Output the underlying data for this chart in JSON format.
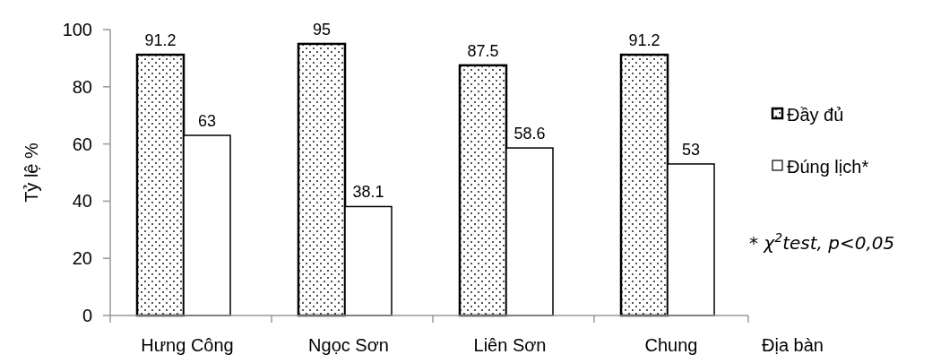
{
  "chart_data": {
    "type": "bar",
    "ylabel": "Tỷ lệ %",
    "xlabel": "Địa bàn",
    "categories": [
      "Hưng Công",
      "Ngọc Sơn",
      "Liên Sơn",
      "Chung"
    ],
    "series": [
      {
        "name": "Đầy đủ",
        "color": "#000000",
        "values": [
          91.2,
          95,
          87.5,
          91.2
        ]
      },
      {
        "name": "Đúng lịch*",
        "color": "#ffffff",
        "values": [
          63,
          38.1,
          58.6,
          53
        ]
      }
    ],
    "ylim": [
      0,
      100
    ],
    "yticks": [
      0,
      20,
      40,
      60,
      80,
      100
    ],
    "grid": false,
    "legend": "right",
    "data_labels": true,
    "annotations": [
      "* χ$^{2}$test, p<0,05"
    ]
  }
}
